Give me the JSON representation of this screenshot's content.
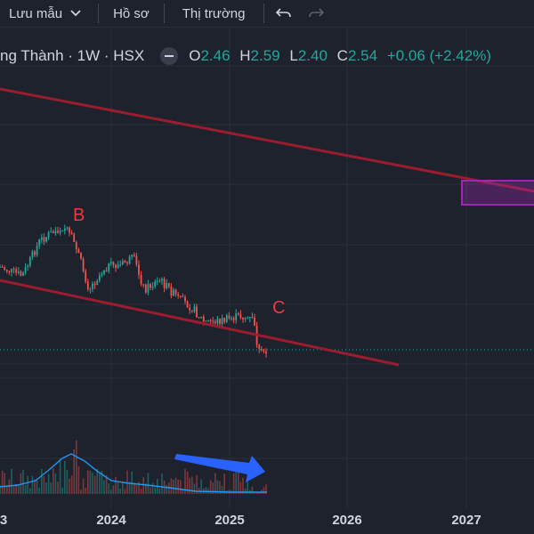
{
  "toolbar": {
    "save_label": "Lưu mẫu",
    "profile_label": "Hồ sơ",
    "market_label": "Thị trường",
    "undo_icon": "undo-icon",
    "redo_icon": "redo-icon"
  },
  "legend": {
    "symbol": "ng Thành · 1W · HSX",
    "o_label": "O",
    "o_value": "2.46",
    "h_label": "H",
    "h_value": "2.59",
    "l_label": "L",
    "l_value": "2.40",
    "c_label": "C",
    "c_value": "2.54",
    "change": "+0.06 (+2.42%)"
  },
  "annotations": {
    "wave_b": "B",
    "wave_c": "C"
  },
  "xaxis": {
    "labels": [
      "3",
      "2024",
      "2025",
      "2026",
      "2027"
    ]
  },
  "colors": {
    "background": "#1e222d",
    "up": "#26a69a",
    "down": "#ef5350",
    "trendline": "#9b1c2e",
    "volume_ma": "#2196f3",
    "arrow": "#2962ff",
    "box": "#9c27b0",
    "label": "#f23645"
  }
}
